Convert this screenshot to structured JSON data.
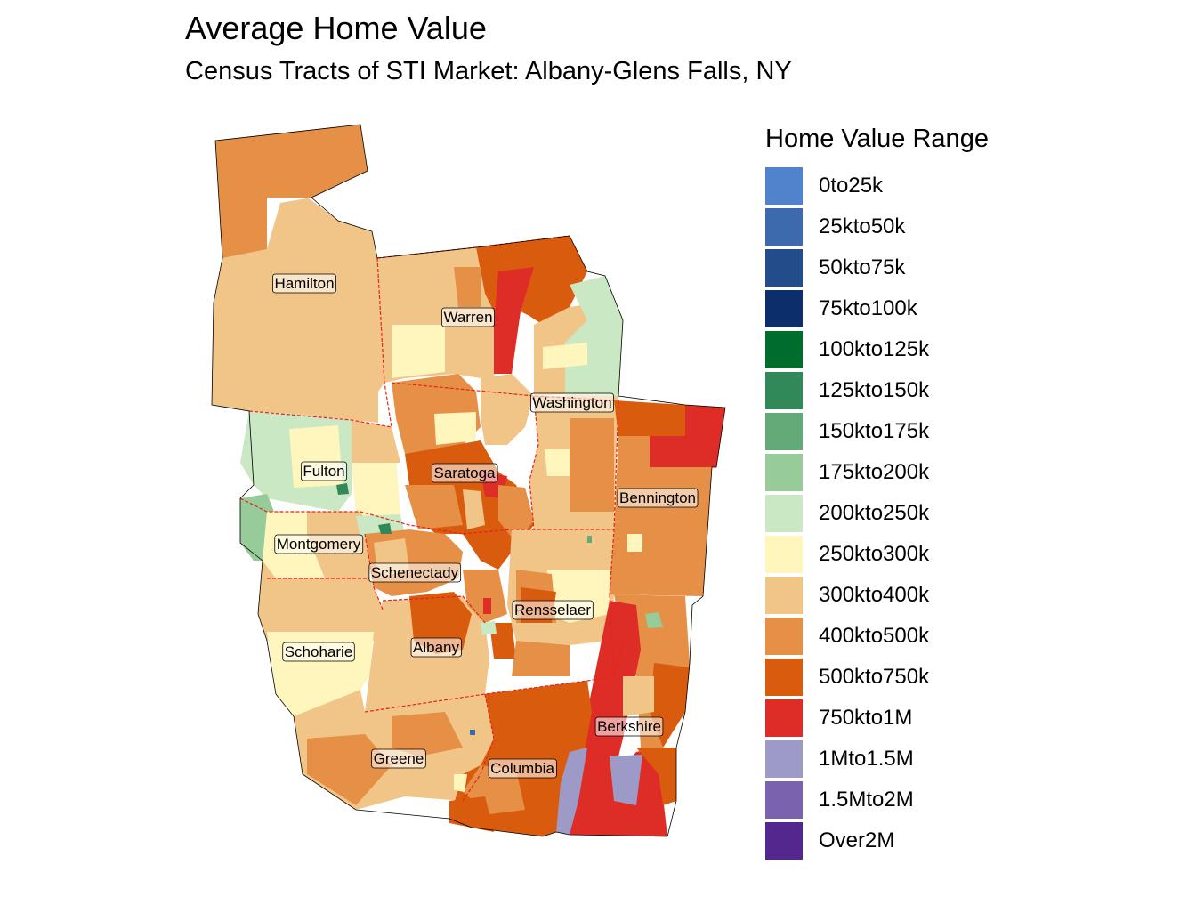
{
  "title": "Average Home Value",
  "subtitle": "Census Tracts of STI Market: Albany-Glens Falls, NY",
  "legend": {
    "title": "Home Value Range",
    "items": [
      {
        "label": "0to25k",
        "color": "#5083cb"
      },
      {
        "label": "25kto50k",
        "color": "#3d6aad"
      },
      {
        "label": "50kto75k",
        "color": "#224d8a"
      },
      {
        "label": "75kto100k",
        "color": "#0c2e6a"
      },
      {
        "label": "100kto125k",
        "color": "#006d2c"
      },
      {
        "label": "125kto150k",
        "color": "#31895a"
      },
      {
        "label": "150kto175k",
        "color": "#63aa78"
      },
      {
        "label": "175kto200k",
        "color": "#98cb9a"
      },
      {
        "label": "200kto250k",
        "color": "#c9e8c3"
      },
      {
        "label": "250kto300k",
        "color": "#fef6bd"
      },
      {
        "label": "300kto400k",
        "color": "#f1c588"
      },
      {
        "label": "400kto500k",
        "color": "#e59046"
      },
      {
        "label": "500kto750k",
        "color": "#d95b0e"
      },
      {
        "label": "750kto1M",
        "color": "#de2d26"
      },
      {
        "label": "1Mto1.5M",
        "color": "#9e9ac8"
      },
      {
        "label": "1.5Mto2M",
        "color": "#7b62ae"
      },
      {
        "label": "Over2M",
        "color": "#54278f"
      }
    ]
  },
  "counties": [
    "Hamilton",
    "Warren",
    "Washington",
    "Fulton",
    "Saratoga",
    "Bennington",
    "Montgomery",
    "Schenectady",
    "Rensselaer",
    "Schoharie",
    "Albany",
    "Berkshire",
    "Greene",
    "Columbia"
  ]
}
